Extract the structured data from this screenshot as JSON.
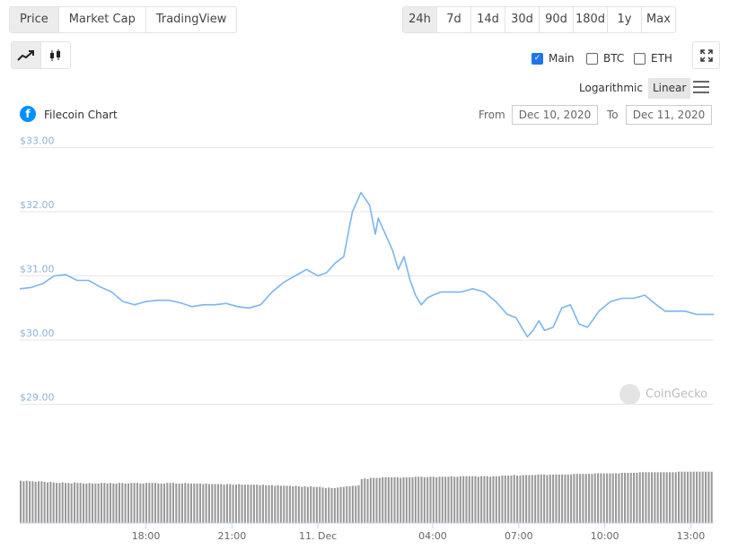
{
  "tabs": [
    {
      "label": "Price",
      "active": true
    },
    {
      "label": "Market Cap",
      "active": false
    },
    {
      "label": "TradingView",
      "active": false
    }
  ],
  "ranges": [
    {
      "label": "24h",
      "active": true
    },
    {
      "label": "7d",
      "active": false
    },
    {
      "label": "14d",
      "active": false
    },
    {
      "label": "30d",
      "active": false
    },
    {
      "label": "90d",
      "active": false
    },
    {
      "label": "180d",
      "active": false
    },
    {
      "label": "1y",
      "active": false
    },
    {
      "label": "Max",
      "active": false
    }
  ],
  "chart_types": [
    {
      "icon": "line-chart-icon",
      "active": true
    },
    {
      "icon": "candlestick-icon",
      "active": false
    }
  ],
  "compare": [
    {
      "label": "Main",
      "checked": true
    },
    {
      "label": "BTC",
      "checked": false
    },
    {
      "label": "ETH",
      "checked": false
    }
  ],
  "expand_icon": "expand-icon",
  "scale": {
    "logarithmic": "Logarithmic",
    "linear": "Linear",
    "active": "linear"
  },
  "menu_icon": "hamburger-menu-icon",
  "coin": {
    "logo_glyph": "f",
    "title": "Filecoin Chart"
  },
  "date_range": {
    "from_label": "From",
    "from": "Dec 10, 2020",
    "to_label": "To",
    "to": "Dec 11, 2020"
  },
  "watermark": "CoinGecko",
  "colors": {
    "line": "#7cb5ec",
    "volume": "#9a9a9a",
    "accent": "#1f75e8",
    "axis_label": "#8cb3d9"
  },
  "chart_data": {
    "type": "line",
    "title": "Filecoin Chart",
    "y_ticks": [
      "$33.00",
      "$32.00",
      "$31.00",
      "$30.00",
      "$29.00"
    ],
    "y_tick_values": [
      33,
      32,
      31,
      30,
      29
    ],
    "ylim": [
      28.7,
      33.0
    ],
    "x_ticks": [
      {
        "label": "18:00",
        "t": 18
      },
      {
        "label": "21:00",
        "t": 21
      },
      {
        "label": "11. Dec",
        "t": 24
      },
      {
        "label": "04:00",
        "t": 28
      },
      {
        "label": "07:00",
        "t": 31
      },
      {
        "label": "10:00",
        "t": 34
      },
      {
        "label": "13:00",
        "t": 37
      }
    ],
    "xlim": [
      13.6,
      37.8
    ],
    "series": [
      {
        "x": [
          13.6,
          14.0,
          14.4,
          14.8,
          15.2,
          15.6,
          16.0,
          16.4,
          16.8,
          17.2,
          17.6,
          18.0,
          18.4,
          18.8,
          19.2,
          19.6,
          20.0,
          20.4,
          20.8,
          21.2,
          21.6,
          22.0,
          22.4,
          22.8,
          23.2,
          23.6,
          24.0,
          24.3,
          24.6,
          24.9,
          25.2,
          25.5,
          25.8,
          26.0,
          26.1,
          26.3,
          26.6,
          26.8,
          27.0,
          27.2,
          27.4,
          27.6,
          27.8,
          28.0,
          28.3,
          28.6,
          29.0,
          29.4,
          29.8,
          30.2,
          30.6,
          30.9,
          31.1,
          31.3,
          31.5,
          31.7,
          31.9,
          32.2,
          32.5,
          32.8,
          33.1,
          33.4,
          33.8,
          34.2,
          34.6,
          35.0,
          35.4,
          35.8,
          36.1,
          36.4,
          36.8,
          37.2,
          37.6,
          37.8
        ],
        "values": [
          30.8,
          30.82,
          30.88,
          31.0,
          31.02,
          30.93,
          30.93,
          30.83,
          30.75,
          30.6,
          30.55,
          30.6,
          30.62,
          30.62,
          30.58,
          30.52,
          30.55,
          30.55,
          30.57,
          30.52,
          30.5,
          30.55,
          30.75,
          30.9,
          31.0,
          31.1,
          31.0,
          31.05,
          31.2,
          31.3,
          32.0,
          32.3,
          32.1,
          31.65,
          31.9,
          31.7,
          31.4,
          31.1,
          31.3,
          30.95,
          30.7,
          30.55,
          30.65,
          30.7,
          30.75,
          30.75,
          30.75,
          30.8,
          30.75,
          30.6,
          30.4,
          30.35,
          30.2,
          30.05,
          30.15,
          30.3,
          30.15,
          30.2,
          30.5,
          30.55,
          30.25,
          30.2,
          30.45,
          30.6,
          30.65,
          30.65,
          30.7,
          30.55,
          30.45,
          30.45,
          30.45,
          30.4,
          30.4,
          30.4
        ]
      }
    ],
    "volume": [
      0.75,
      0.74,
      0.75,
      0.74,
      0.74,
      0.73,
      0.74,
      0.74,
      0.73,
      0.72,
      0.73,
      0.72,
      0.71,
      0.71,
      0.72,
      0.71,
      0.71,
      0.7,
      0.72,
      0.71,
      0.71,
      0.7,
      0.7,
      0.71,
      0.7,
      0.7,
      0.7,
      0.71,
      0.71,
      0.7,
      0.71,
      0.7,
      0.7,
      0.71,
      0.71,
      0.7,
      0.7,
      0.71,
      0.71,
      0.71,
      0.7,
      0.7,
      0.71,
      0.71,
      0.71,
      0.71,
      0.7,
      0.7,
      0.7,
      0.71,
      0.71,
      0.71,
      0.7,
      0.7,
      0.7,
      0.71,
      0.7,
      0.7,
      0.7,
      0.7,
      0.7,
      0.69,
      0.7,
      0.69,
      0.69,
      0.69,
      0.69,
      0.69,
      0.68,
      0.69,
      0.69,
      0.68,
      0.68,
      0.69,
      0.68,
      0.68,
      0.68,
      0.68,
      0.68,
      0.68,
      0.67,
      0.68,
      0.67,
      0.67,
      0.67,
      0.66,
      0.67,
      0.66,
      0.66,
      0.66,
      0.66,
      0.65,
      0.66,
      0.65,
      0.64,
      0.65,
      0.64,
      0.65,
      0.64,
      0.64,
      0.64,
      0.63,
      0.62,
      0.63,
      0.62,
      0.62,
      0.63,
      0.64,
      0.64,
      0.65,
      0.65,
      0.66,
      0.66,
      0.67,
      0.78,
      0.79,
      0.78,
      0.8,
      0.8,
      0.8,
      0.8,
      0.81,
      0.81,
      0.81,
      0.81,
      0.81,
      0.81,
      0.8,
      0.81,
      0.81,
      0.81,
      0.81,
      0.82,
      0.82,
      0.82,
      0.81,
      0.81,
      0.82,
      0.82,
      0.81,
      0.82,
      0.82,
      0.82,
      0.82,
      0.83,
      0.82,
      0.82,
      0.83,
      0.83,
      0.83,
      0.83,
      0.83,
      0.83,
      0.82,
      0.83,
      0.83,
      0.83,
      0.82,
      0.83,
      0.83,
      0.83,
      0.84,
      0.84,
      0.84,
      0.84,
      0.85,
      0.84,
      0.84,
      0.85,
      0.85,
      0.85,
      0.85,
      0.85,
      0.86,
      0.86,
      0.86,
      0.85,
      0.86,
      0.86,
      0.86,
      0.86,
      0.86,
      0.86,
      0.86,
      0.86,
      0.87,
      0.87,
      0.87,
      0.87,
      0.87,
      0.87,
      0.87,
      0.88,
      0.88,
      0.88,
      0.88,
      0.88,
      0.88,
      0.88,
      0.88,
      0.88,
      0.89,
      0.89,
      0.89,
      0.89,
      0.89,
      0.89,
      0.9,
      0.9,
      0.9,
      0.9,
      0.9,
      0.9,
      0.9,
      0.9,
      0.9,
      0.9,
      0.9,
      0.9,
      0.9,
      0.91,
      0.91,
      0.91,
      0.91,
      0.91,
      0.91,
      0.91,
      0.91,
      0.91,
      0.91,
      0.91,
      0.91
    ],
    "grid": true
  }
}
